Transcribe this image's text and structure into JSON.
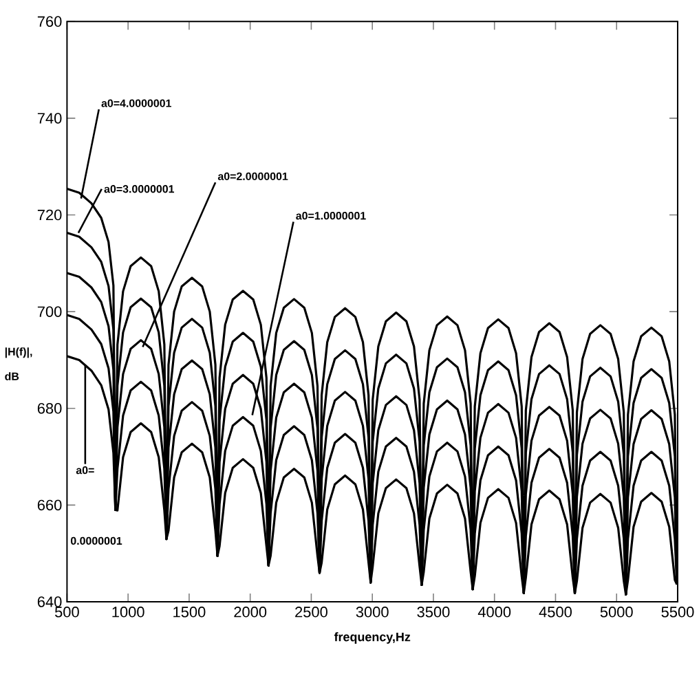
{
  "chart_data": {
    "type": "line",
    "xlabel": "frequency,Hz",
    "ylabel": "|H(f)|, dB",
    "xlim": [
      500,
      5500
    ],
    "ylim": [
      640,
      760
    ],
    "xticks": [
      500,
      1000,
      1500,
      2000,
      2500,
      3000,
      3500,
      4000,
      4500,
      5000,
      5500
    ],
    "yticks": [
      640,
      660,
      680,
      700,
      720,
      740,
      760
    ],
    "grid": false,
    "marker": "none",
    "line_style": "solid",
    "x": [
      500,
      600,
      700,
      780,
      840,
      880,
      896,
      913,
      959,
      1021,
      1105,
      1189,
      1251,
      1297,
      1314,
      1331,
      1377,
      1439,
      1523,
      1607,
      1669,
      1715,
      1732,
      1749,
      1795,
      1857,
      1941,
      2025,
      2087,
      2133,
      2150,
      2167,
      2213,
      2275,
      2359,
      2443,
      2505,
      2551,
      2568,
      2585,
      2631,
      2693,
      2777,
      2861,
      2923,
      2969,
      2986,
      3003,
      3049,
      3111,
      3195,
      3279,
      3341,
      3387,
      3404,
      3421,
      3467,
      3529,
      3613,
      3697,
      3759,
      3805,
      3822,
      3839,
      3885,
      3947,
      4031,
      4115,
      4177,
      4223,
      4240,
      4257,
      4303,
      4365,
      4449,
      4533,
      4595,
      4641,
      4658,
      4675,
      4721,
      4783,
      4867,
      4951,
      5013,
      5059,
      5076,
      5093,
      5139,
      5201,
      5285,
      5369,
      5431,
      5477,
      5494
    ],
    "series": [
      {
        "color": "#000000",
        "values": [
          690.8,
          690.0,
          687.8,
          684.8,
          679.8,
          670.8,
          659.0,
          658.9,
          669.9,
          675.1,
          676.9,
          675.1,
          669.9,
          658.9,
          653.0,
          654.7,
          665.7,
          670.9,
          672.7,
          670.9,
          665.7,
          654.7,
          649.5,
          651.5,
          662.5,
          667.7,
          669.5,
          667.7,
          662.5,
          651.5,
          647.5,
          649.5,
          660.5,
          665.7,
          667.5,
          665.7,
          660.5,
          649.5,
          646.0,
          648.1,
          659.1,
          664.3,
          666.1,
          664.3,
          659.1,
          648.1,
          644.0,
          647.3,
          658.3,
          663.5,
          665.3,
          663.5,
          658.3,
          647.3,
          643.5,
          646.2,
          657.2,
          662.4,
          664.2,
          662.4,
          657.2,
          646.2,
          642.6,
          645.3,
          656.3,
          661.5,
          663.3,
          661.5,
          656.3,
          645.3,
          641.8,
          645.0,
          656.0,
          661.2,
          663.0,
          661.2,
          656.0,
          645.0,
          641.8,
          644.3,
          655.3,
          660.5,
          662.3,
          660.5,
          655.3,
          644.3,
          641.5,
          644.5,
          655.5,
          660.7,
          662.5,
          660.7,
          655.5,
          644.5,
          643.6
        ]
      },
      {
        "color": "#000000",
        "values": [
          699.3,
          698.5,
          696.3,
          693.3,
          688.3,
          679.3,
          659.0,
          667.5,
          678.5,
          683.7,
          685.5,
          683.7,
          678.5,
          667.5,
          653.0,
          663.3,
          674.3,
          679.5,
          681.3,
          679.5,
          674.3,
          663.3,
          649.5,
          660.2,
          671.2,
          676.4,
          678.2,
          676.4,
          671.2,
          660.2,
          647.5,
          658.3,
          669.3,
          674.5,
          676.3,
          674.5,
          669.3,
          658.3,
          646.0,
          656.7,
          667.7,
          672.9,
          674.7,
          672.9,
          667.7,
          656.7,
          644.0,
          655.9,
          666.9,
          672.1,
          673.9,
          672.1,
          666.9,
          655.9,
          643.5,
          654.9,
          665.9,
          671.1,
          672.9,
          671.1,
          665.9,
          654.9,
          642.6,
          654.1,
          665.1,
          670.3,
          672.1,
          670.3,
          665.1,
          654.1,
          641.8,
          653.6,
          664.6,
          669.8,
          671.6,
          669.8,
          664.6,
          653.6,
          641.8,
          653.0,
          664.0,
          669.2,
          671.0,
          669.2,
          664.0,
          653.0,
          641.5,
          653.0,
          664.0,
          669.2,
          671.0,
          669.2,
          664.0,
          653.0,
          643.6
        ]
      },
      {
        "color": "#000000",
        "values": [
          708.0,
          707.2,
          705.0,
          702.0,
          697.0,
          688.0,
          659.0,
          676.1,
          687.1,
          692.3,
          694.1,
          692.3,
          687.1,
          676.1,
          653.0,
          671.9,
          682.9,
          688.1,
          689.9,
          688.1,
          682.9,
          671.9,
          649.5,
          668.9,
          679.9,
          685.1,
          686.9,
          685.1,
          679.9,
          668.9,
          647.5,
          667.1,
          678.1,
          683.3,
          685.1,
          683.3,
          678.1,
          667.1,
          646.0,
          665.4,
          676.4,
          681.6,
          683.4,
          681.6,
          676.4,
          665.4,
          644.0,
          664.5,
          675.5,
          680.7,
          682.5,
          680.7,
          675.5,
          664.5,
          643.5,
          663.6,
          674.6,
          679.8,
          681.6,
          679.8,
          674.6,
          663.6,
          642.6,
          662.9,
          673.9,
          679.1,
          680.9,
          679.1,
          673.9,
          662.9,
          641.8,
          662.3,
          673.3,
          678.5,
          680.3,
          678.5,
          673.3,
          662.3,
          641.8,
          661.7,
          672.7,
          677.9,
          679.7,
          677.9,
          672.7,
          661.7,
          641.5,
          661.6,
          672.6,
          677.8,
          679.6,
          677.8,
          672.6,
          661.6,
          643.6
        ]
      },
      {
        "color": "#000000",
        "values": [
          716.3,
          715.5,
          713.3,
          710.3,
          705.3,
          696.3,
          659.0,
          684.7,
          695.7,
          700.9,
          702.7,
          700.9,
          695.7,
          684.7,
          653.0,
          680.5,
          691.5,
          696.7,
          698.5,
          696.7,
          691.5,
          680.5,
          649.5,
          677.6,
          688.6,
          693.8,
          695.6,
          693.8,
          688.6,
          677.6,
          647.5,
          675.9,
          686.9,
          692.1,
          693.9,
          692.1,
          686.9,
          675.9,
          646.0,
          674.0,
          685.0,
          690.2,
          692.0,
          690.2,
          685.0,
          674.0,
          644.0,
          673.1,
          684.1,
          689.3,
          691.1,
          689.3,
          684.1,
          673.1,
          643.5,
          672.3,
          683.3,
          688.5,
          690.3,
          688.5,
          683.3,
          672.3,
          642.6,
          671.7,
          682.7,
          687.9,
          689.7,
          687.9,
          682.7,
          671.7,
          641.8,
          670.9,
          681.9,
          687.1,
          688.9,
          687.1,
          681.9,
          670.9,
          641.8,
          670.4,
          681.4,
          686.6,
          688.4,
          686.6,
          681.4,
          670.4,
          641.5,
          670.1,
          681.1,
          686.3,
          688.1,
          686.3,
          681.1,
          670.1,
          643.6
        ]
      },
      {
        "color": "#000000",
        "values": [
          725.4,
          724.6,
          722.4,
          719.4,
          714.4,
          705.4,
          659.0,
          693.2,
          704.2,
          709.4,
          711.2,
          709.4,
          704.2,
          693.2,
          653.0,
          689.0,
          700.0,
          705.2,
          707.0,
          705.2,
          700.0,
          689.0,
          649.5,
          686.3,
          697.3,
          702.5,
          704.3,
          702.5,
          697.3,
          686.3,
          647.5,
          684.6,
          695.6,
          700.8,
          702.6,
          700.8,
          695.6,
          684.6,
          646.0,
          682.7,
          693.7,
          698.9,
          700.7,
          698.9,
          693.7,
          682.7,
          644.0,
          681.8,
          692.8,
          698.0,
          699.8,
          698.0,
          692.8,
          681.8,
          643.5,
          681.0,
          692.0,
          697.2,
          699.0,
          697.2,
          692.0,
          681.0,
          642.6,
          680.4,
          691.4,
          696.6,
          698.4,
          696.6,
          691.4,
          680.4,
          641.8,
          679.6,
          690.6,
          695.8,
          697.6,
          695.8,
          690.6,
          679.6,
          641.8,
          679.2,
          690.2,
          695.4,
          697.2,
          695.4,
          690.2,
          679.2,
          641.5,
          678.7,
          689.7,
          694.9,
          696.7,
          694.9,
          689.7,
          678.7,
          643.6
        ]
      }
    ],
    "annotations": [
      {
        "text": "a0=4.0000001",
        "x": 615,
        "y": 723.4
      },
      {
        "text": "a0=3.0000001",
        "x": 593,
        "y": 716.3
      },
      {
        "text": "a0=2.0000001",
        "x": 1120,
        "y": 692.7
      },
      {
        "text": "a0=1.0000001",
        "x": 2017,
        "y": 678.6
      },
      {
        "text": "a0=",
        "x": 649,
        "y": 688.9
      },
      "0.0000001"
    ]
  }
}
